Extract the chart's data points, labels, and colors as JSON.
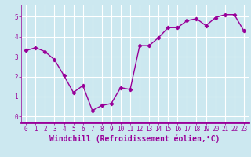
{
  "x": [
    0,
    1,
    2,
    3,
    4,
    5,
    6,
    7,
    8,
    9,
    10,
    11,
    12,
    13,
    14,
    15,
    16,
    17,
    18,
    19,
    20,
    21,
    22,
    23
  ],
  "y": [
    3.3,
    3.45,
    3.25,
    2.85,
    2.05,
    1.2,
    1.55,
    0.3,
    0.55,
    0.65,
    1.45,
    1.35,
    3.55,
    3.55,
    3.95,
    4.45,
    4.45,
    4.8,
    4.9,
    4.55,
    4.95,
    5.1,
    5.1,
    4.3
  ],
  "line_color": "#990099",
  "marker": "D",
  "markersize": 2.2,
  "linewidth": 1.0,
  "bg_color": "#cce8f0",
  "grid_color": "#ffffff",
  "xlabel": "Windchill (Refroidissement éolien,°C)",
  "xlabel_color": "#990099",
  "tick_color": "#990099",
  "spine_color": "#990099",
  "ylim": [
    -0.3,
    5.6
  ],
  "xlim": [
    -0.5,
    23.5
  ],
  "yticks": [
    0,
    1,
    2,
    3,
    4,
    5
  ],
  "xticks": [
    0,
    1,
    2,
    3,
    4,
    5,
    6,
    7,
    8,
    9,
    10,
    11,
    12,
    13,
    14,
    15,
    16,
    17,
    18,
    19,
    20,
    21,
    22,
    23
  ],
  "tick_fontsize": 5.5,
  "xlabel_fontsize": 7.0,
  "separator_color": "#990099",
  "separator_linewidth": 2.0
}
